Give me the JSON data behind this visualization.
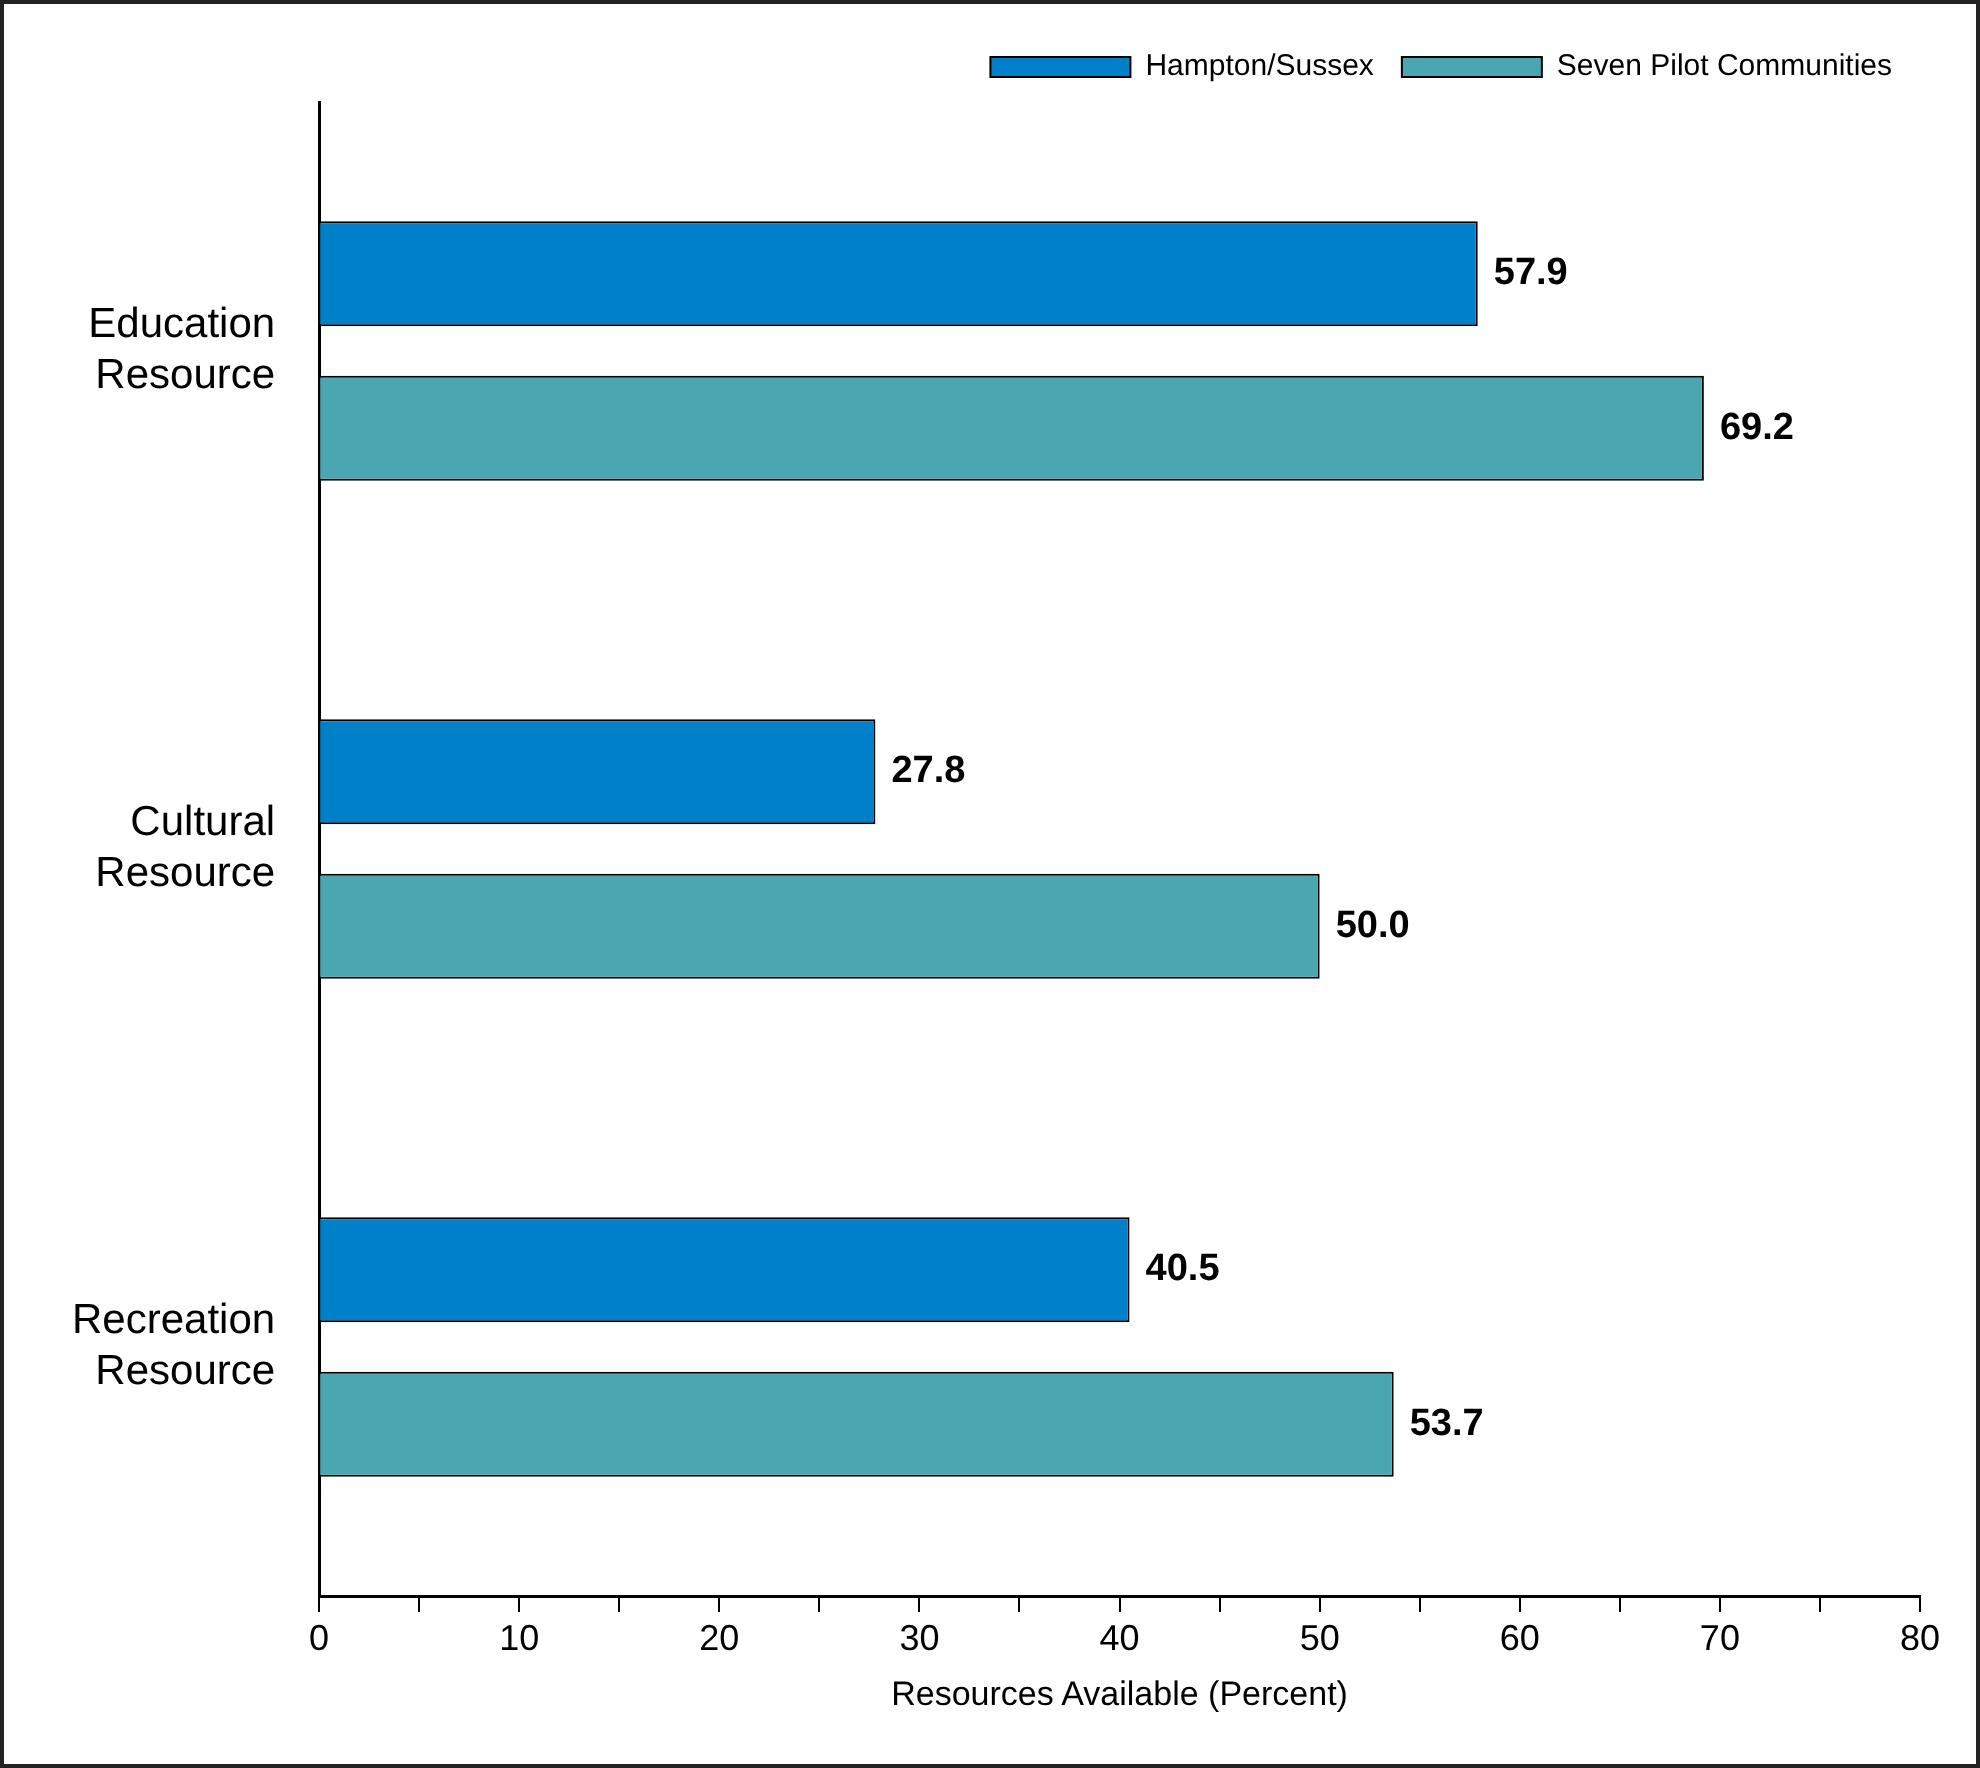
{
  "chart_data": {
    "type": "bar",
    "orientation": "horizontal",
    "categories": [
      "Education Resource",
      "Cultural Resource",
      "Recreation Resource"
    ],
    "series": [
      {
        "name": "Hampton/Sussex",
        "color": "#0080c8",
        "values": [
          57.9,
          27.8,
          40.5
        ]
      },
      {
        "name": "Seven Pilot Communities",
        "color": "#4aa6b0",
        "values": [
          69.2,
          50.0,
          53.7
        ]
      }
    ],
    "xlabel": "Resources Available (Percent)",
    "xlim": [
      0,
      80
    ],
    "xticks": [
      0,
      {
        "value": 5,
        "label": null
      },
      10,
      {
        "value": 15,
        "label": null
      },
      20,
      {
        "value": 25,
        "label": null
      },
      30,
      {
        "value": 35,
        "label": null
      },
      40,
      {
        "value": 45,
        "label": null
      },
      50,
      {
        "value": 55,
        "label": null
      },
      60,
      {
        "value": 65,
        "label": null
      },
      70,
      {
        "value": 75,
        "label": null
      },
      80
    ],
    "value_labels": [
      [
        "57.9",
        "27.8",
        "40.5"
      ],
      [
        "69.2",
        "50.0",
        "53.7"
      ]
    ],
    "grid": false,
    "legend": "top right"
  }
}
